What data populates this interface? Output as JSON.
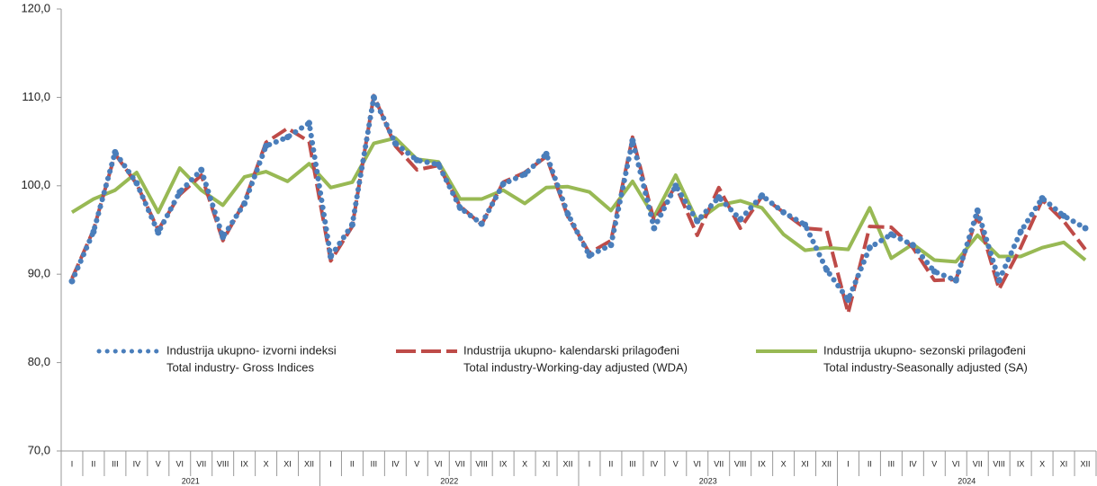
{
  "chart_data": {
    "type": "line",
    "categories": [
      "I",
      "II",
      "III",
      "IV",
      "V",
      "VI",
      "VII",
      "VIII",
      "IX",
      "X",
      "XI",
      "XII",
      "I",
      "II",
      "III",
      "IV",
      "V",
      "VI",
      "VII",
      "VIII",
      "IX",
      "X",
      "XI",
      "XII",
      "I",
      "II",
      "III",
      "IV",
      "V",
      "VI",
      "VII",
      "VIII",
      "IX",
      "X",
      "XI",
      "XII",
      "I",
      "II",
      "III",
      "IV",
      "V",
      "VI",
      "VII",
      "VIII",
      "IX",
      "X",
      "XI",
      "XII"
    ],
    "years": [
      "2021",
      "2022",
      "2023",
      "2024"
    ],
    "series": [
      {
        "name": "Industrija ukupno- izvorni indeksi",
        "name_en": "Total industry- Gross Indices",
        "color": "#4a7ebb",
        "style": "dotted",
        "values": [
          89.2,
          94.8,
          103.8,
          100.3,
          94.7,
          99.3,
          101.8,
          94.2,
          98.0,
          104.5,
          105.5,
          107.1,
          92.0,
          95.6,
          110.0,
          104.8,
          102.9,
          102.4,
          97.5,
          95.7,
          100.2,
          101.3,
          103.6,
          96.8,
          92.1,
          93.3,
          105.1,
          95.2,
          100.0,
          96.0,
          98.7,
          96.2,
          98.9,
          97.0,
          95.6,
          90.5,
          87.1,
          93.0,
          94.5,
          93.3,
          90.3,
          89.3,
          97.2,
          89.3,
          94.8,
          98.6,
          96.6,
          95.2
        ]
      },
      {
        "name": "Industrija ukupno- kalendarski prilagođeni",
        "name_en": "Total industry-Working-day adjusted (WDA)",
        "color": "#be4b48",
        "style": "dashed",
        "values": [
          89.5,
          95.0,
          103.6,
          100.2,
          95.0,
          99.0,
          101.2,
          93.8,
          98.2,
          104.9,
          106.5,
          105.0,
          91.5,
          95.4,
          110.2,
          104.5,
          101.8,
          102.3,
          97.7,
          95.6,
          100.4,
          101.5,
          103.3,
          96.5,
          92.4,
          93.8,
          105.5,
          96.0,
          100.0,
          94.4,
          99.8,
          95.2,
          98.8,
          97.0,
          95.2,
          95.0,
          85.6,
          95.4,
          95.3,
          93.0,
          89.3,
          89.4,
          96.6,
          88.3,
          93.0,
          98.4,
          96.0,
          92.8
        ]
      },
      {
        "name": "Industrija ukupno- sezonski prilagođeni",
        "name_en": "Total industry-Seasonally adjusted (SA)",
        "color": "#98b954",
        "style": "solid",
        "values": [
          97.0,
          98.5,
          99.5,
          101.5,
          97.0,
          102.0,
          99.5,
          97.8,
          101.0,
          101.6,
          100.5,
          102.5,
          99.8,
          100.4,
          104.8,
          105.4,
          103.0,
          102.7,
          98.5,
          98.5,
          99.5,
          98.0,
          99.8,
          99.9,
          99.3,
          97.2,
          100.5,
          96.5,
          101.2,
          96.0,
          97.8,
          98.3,
          97.5,
          94.5,
          92.7,
          93.0,
          92.8,
          97.5,
          91.8,
          93.4,
          91.6,
          91.4,
          94.4,
          92.0,
          92.0,
          93.0,
          93.6,
          91.6
        ]
      }
    ],
    "ylim": [
      70,
      120
    ],
    "yticks": [
      {
        "value": 70,
        "label": "70,0"
      },
      {
        "value": 80,
        "label": "80,0"
      },
      {
        "value": 90,
        "label": "90,0"
      },
      {
        "value": 100,
        "label": "100,0"
      },
      {
        "value": 110,
        "label": "110,0"
      },
      {
        "value": 120,
        "label": "120,0"
      }
    ],
    "grid": false
  }
}
